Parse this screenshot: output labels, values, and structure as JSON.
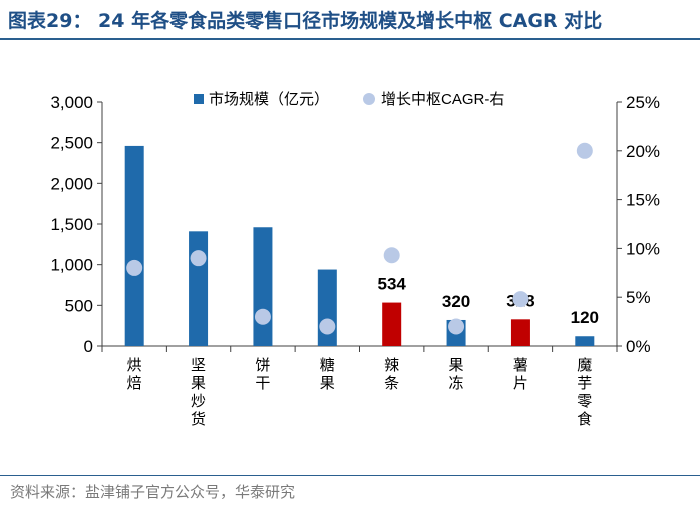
{
  "title": "图表29：  24 年各零食品类零售口径市场规模及增长中枢 CAGR 对比",
  "source": "资料来源：盐津铺子官方公众号，华泰研究",
  "colors": {
    "title": "#1f4f86",
    "bar": "#1f6aab",
    "bar_highlight": "#c00000",
    "dot": "#b9c9e6",
    "axis": "#404040",
    "rule": "#2a5f8f"
  },
  "chart_data": {
    "type": "bar",
    "categories": [
      "烘焙",
      "坚果炒货",
      "饼干",
      "糖果",
      "辣条",
      "果冻",
      "薯片",
      "魔芋零食"
    ],
    "series": [
      {
        "name": "市场规模（亿元）",
        "type": "bar",
        "axis": "left",
        "values": [
          2460,
          1410,
          1460,
          940,
          534,
          320,
          328,
          120
        ],
        "highlight": [
          false,
          false,
          false,
          false,
          true,
          false,
          true,
          false
        ],
        "data_labels": [
          "",
          "",
          "",
          "",
          "534",
          "320",
          "328",
          "120"
        ]
      },
      {
        "name": "增长中枢CAGR-右",
        "type": "scatter",
        "axis": "right",
        "values": [
          0.08,
          0.09,
          0.03,
          0.02,
          0.093,
          0.02,
          0.048,
          0.2
        ]
      }
    ],
    "y_left": {
      "min": 0,
      "max": 3000,
      "ticks": [
        0,
        500,
        1000,
        1500,
        2000,
        2500,
        3000
      ],
      "tick_labels": [
        "0",
        "500",
        "1,000",
        "1,500",
        "2,000",
        "2,500",
        "3,000"
      ]
    },
    "y_right": {
      "min": 0,
      "max": 0.25,
      "ticks": [
        0,
        0.05,
        0.1,
        0.15,
        0.2,
        0.25
      ],
      "tick_labels": [
        "0%",
        "5%",
        "10%",
        "15%",
        "20%",
        "25%"
      ]
    },
    "legend_position": "top",
    "grid": false
  }
}
